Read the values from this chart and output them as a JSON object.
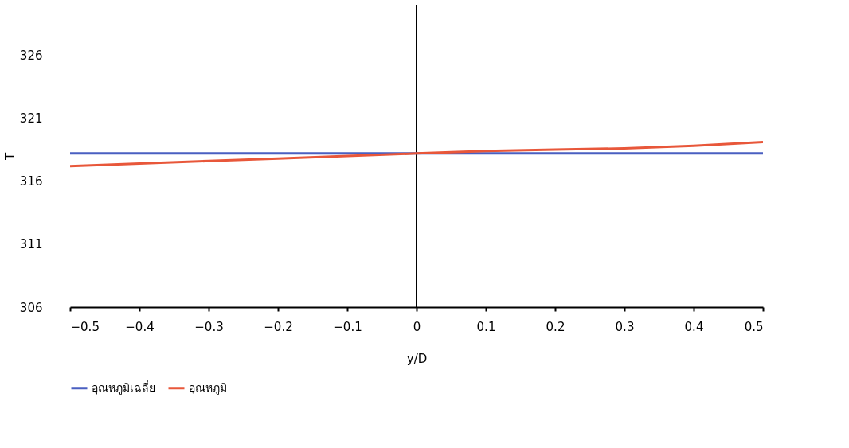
{
  "chart_data": {
    "type": "line",
    "xlabel": "y/D",
    "ylabel": "T",
    "x": [
      -0.5,
      -0.4,
      -0.3,
      -0.2,
      -0.1,
      0,
      0.1,
      0.2,
      0.3,
      0.4,
      0.5
    ],
    "series": [
      {
        "name": "อุณหภูมิเฉลี่ย",
        "color": "#4a5fc1",
        "values": [
          318.2,
          318.2,
          318.2,
          318.2,
          318.2,
          318.2,
          318.2,
          318.2,
          318.2,
          318.2,
          318.2
        ]
      },
      {
        "name": "อุณหภูมิ",
        "color": "#e8573a",
        "values": [
          317.2,
          317.4,
          317.6,
          317.8,
          318.0,
          318.2,
          318.4,
          318.5,
          318.6,
          318.8,
          319.1
        ]
      }
    ],
    "xlim": [
      -0.5,
      0.5
    ],
    "xticks": [
      -0.5,
      -0.4,
      -0.3,
      -0.2,
      -0.1,
      0,
      0.1,
      0.2,
      0.3,
      0.4,
      0.5
    ],
    "ylim": [
      306,
      330
    ],
    "yticks": [
      306,
      311,
      316,
      321,
      326
    ],
    "ref_lines": [
      {
        "axis": "x",
        "value": 0,
        "color": "#000000"
      }
    ],
    "grid": false,
    "legend": "bottom",
    "marker": "none",
    "line_style": "solid"
  }
}
